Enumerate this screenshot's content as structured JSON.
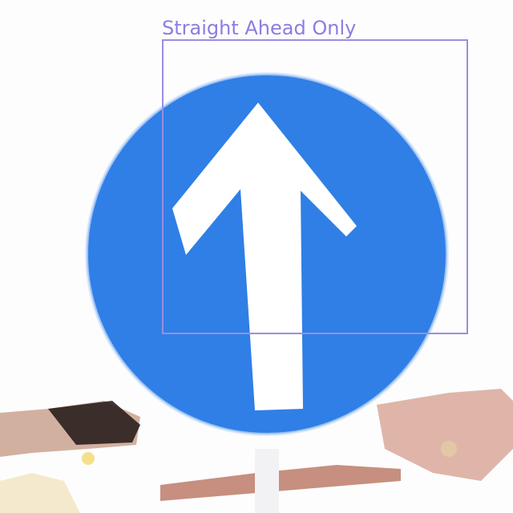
{
  "detection": {
    "label": "Straight Ahead Only",
    "box_color": "#9a8ee0"
  },
  "sign": {
    "shape": "circle",
    "fill_color": "#2f7fe6",
    "symbol_color": "#ffffff",
    "symbol": "arrow-up-icon"
  }
}
